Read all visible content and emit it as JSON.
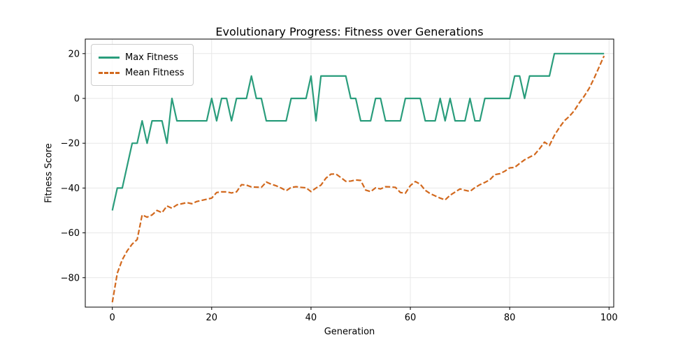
{
  "chart_data": {
    "type": "line",
    "title": "Evolutionary Progress: Fitness over Generations",
    "xlabel": "Generation",
    "ylabel": "Fitness Score",
    "x": [
      0,
      1,
      2,
      3,
      4,
      5,
      6,
      7,
      8,
      9,
      10,
      11,
      12,
      13,
      14,
      15,
      16,
      17,
      18,
      19,
      20,
      21,
      22,
      23,
      24,
      25,
      26,
      27,
      28,
      29,
      30,
      31,
      32,
      33,
      34,
      35,
      36,
      37,
      38,
      39,
      40,
      41,
      42,
      43,
      44,
      45,
      46,
      47,
      48,
      49,
      50,
      51,
      52,
      53,
      54,
      55,
      56,
      57,
      58,
      59,
      60,
      61,
      62,
      63,
      64,
      65,
      66,
      67,
      68,
      69,
      70,
      71,
      72,
      73,
      74,
      75,
      76,
      77,
      78,
      79,
      80,
      81,
      82,
      83,
      84,
      85,
      86,
      87,
      88,
      89,
      90,
      91,
      92,
      93,
      94,
      95,
      96,
      97,
      98,
      99
    ],
    "series": [
      {
        "name": "Max Fitness",
        "line_style": "solid",
        "color": "#2a9d7c",
        "values": [
          -50,
          -40,
          -40,
          -30,
          -20,
          -20,
          -10,
          -20,
          -10,
          -10,
          -10,
          -20,
          0,
          -10,
          -10,
          -10,
          -10,
          -10,
          -10,
          -10,
          0,
          -10,
          0,
          0,
          -10,
          0,
          0,
          0,
          10,
          0,
          0,
          -10,
          -10,
          -10,
          -10,
          -10,
          0,
          0,
          0,
          0,
          10,
          -10,
          10,
          10,
          10,
          10,
          10,
          10,
          0,
          0,
          -10,
          -10,
          -10,
          0,
          0,
          -10,
          -10,
          -10,
          -10,
          0,
          0,
          0,
          0,
          -10,
          -10,
          -10,
          0,
          -10,
          0,
          -10,
          -10,
          -10,
          0,
          -10,
          -10,
          0,
          0,
          0,
          0,
          0,
          0,
          10,
          10,
          0,
          10,
          10,
          10,
          10,
          10,
          20,
          20,
          20,
          20,
          20,
          20,
          20,
          20,
          20,
          20,
          20
        ]
      },
      {
        "name": "Mean Fitness",
        "line_style": "dashed",
        "color": "#d2691e",
        "values": [
          -91,
          -78,
          -72,
          -68,
          -65,
          -63,
          -52,
          -53,
          -52,
          -50,
          -51,
          -48,
          -49,
          -47.5,
          -47,
          -46.5,
          -47,
          -46,
          -45.5,
          -45,
          -44.5,
          -42,
          -41.7,
          -41.7,
          -42.2,
          -41.7,
          -38.5,
          -38.7,
          -39.5,
          -39.6,
          -39.7,
          -37.3,
          -38.3,
          -39,
          -40,
          -41.2,
          -39.7,
          -39.4,
          -39.7,
          -39.9,
          -41.6,
          -40,
          -38.7,
          -35.6,
          -33.8,
          -33.7,
          -35.3,
          -37,
          -36.9,
          -36.4,
          -36.6,
          -40.9,
          -41.6,
          -39.9,
          -40.4,
          -39.4,
          -39.5,
          -39.7,
          -42,
          -42.3,
          -38.9,
          -37.1,
          -38.3,
          -41,
          -42.5,
          -43.5,
          -44.5,
          -45.3,
          -43.2,
          -41.8,
          -40.4,
          -41,
          -41.5,
          -39.8,
          -38.5,
          -37.5,
          -36.3,
          -34,
          -33.6,
          -32.5,
          -31,
          -30.8,
          -29,
          -27.4,
          -26.2,
          -25.1,
          -22.5,
          -19.5,
          -21,
          -16.5,
          -13,
          -10,
          -8,
          -5.5,
          -2,
          1,
          4.5,
          9,
          14,
          19
        ]
      }
    ],
    "xticks": [
      0,
      20,
      40,
      60,
      80,
      100
    ],
    "yticks": [
      20,
      0,
      -20,
      -40,
      -60,
      -80
    ],
    "xlim": [
      -5.4,
      100.9
    ],
    "ylim": [
      -93.5,
      26.5
    ],
    "grid": true,
    "grid_color": "#e7e7e7",
    "legend_position": "upper left",
    "background": "#ffffff"
  }
}
